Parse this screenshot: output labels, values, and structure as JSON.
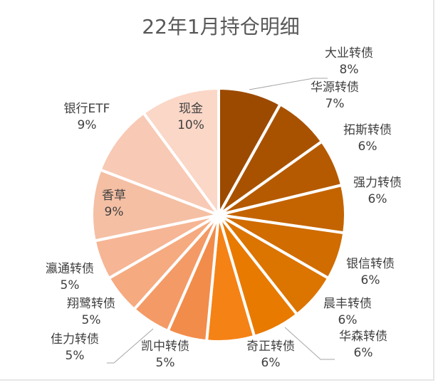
{
  "chart_data": {
    "type": "pie",
    "title": "22年1月持仓明细",
    "slices": [
      {
        "name": "大业转债",
        "value": 8,
        "label": "8%",
        "color": "#9c4a00"
      },
      {
        "name": "华源转债",
        "value": 7,
        "label": "7%",
        "color": "#a85200"
      },
      {
        "name": "拓斯转债",
        "value": 6,
        "label": "6%",
        "color": "#b55a00"
      },
      {
        "name": "强力转债",
        "value": 6,
        "label": "6%",
        "color": "#c46400"
      },
      {
        "name": "银信转债",
        "value": 6,
        "label": "6%",
        "color": "#d06c00"
      },
      {
        "name": "晨丰转债",
        "value": 6,
        "label": "6%",
        "color": "#dc7400"
      },
      {
        "name": "华森转债",
        "value": 6,
        "label": "6%",
        "color": "#e87a00"
      },
      {
        "name": "奇正转债",
        "value": 6,
        "label": "6%",
        "color": "#f58215"
      },
      {
        "name": "凯中转债",
        "value": 5,
        "label": "5%",
        "color": "#f28c4a"
      },
      {
        "name": "佳力转债",
        "value": 5,
        "label": "5%",
        "color": "#f39a66"
      },
      {
        "name": "翔鹭转债",
        "value": 5,
        "label": "5%",
        "color": "#f5aa80"
      },
      {
        "name": "瀛通转债",
        "value": 5,
        "label": "5%",
        "color": "#f6b594"
      },
      {
        "name": "香草",
        "value": 9,
        "label": "9%",
        "color": "#f5bfa4"
      },
      {
        "name": "银行ETF",
        "value": 9,
        "label": "9%",
        "color": "#f8c9b4"
      },
      {
        "name": "现金",
        "value": 10,
        "label": "10%",
        "color": "#fbd7c7"
      }
    ]
  }
}
